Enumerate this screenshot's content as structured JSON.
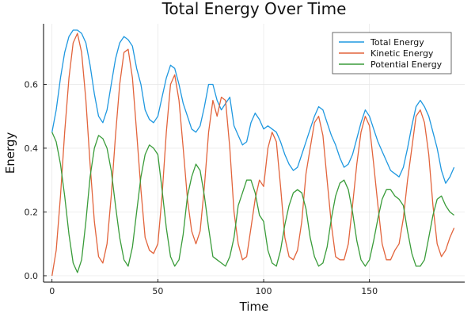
{
  "chart_data": {
    "type": "line",
    "title": "Total Energy Over Time",
    "xlabel": "Time",
    "ylabel": "Energy",
    "xlim": [
      -4,
      195
    ],
    "ylim": [
      -0.02,
      0.79
    ],
    "xticks": [
      0,
      50,
      100,
      150
    ],
    "yticks": [
      0.0,
      0.2,
      0.4,
      0.6
    ],
    "ytick_labels": [
      "0.0",
      "0.2",
      "0.4",
      "0.6"
    ],
    "grid": true,
    "legend_position": "top-right",
    "series": [
      {
        "name": "Total Energy",
        "color": "#1f98e0",
        "x": [
          0,
          2,
          4,
          6,
          8,
          10,
          12,
          14,
          16,
          18,
          20,
          22,
          24,
          26,
          28,
          30,
          32,
          34,
          36,
          38,
          40,
          42,
          44,
          46,
          48,
          50,
          52,
          54,
          56,
          58,
          60,
          62,
          64,
          66,
          68,
          70,
          72,
          74,
          76,
          78,
          80,
          82,
          84,
          86,
          88,
          90,
          92,
          94,
          96,
          98,
          100,
          102,
          104,
          106,
          108,
          110,
          112,
          114,
          116,
          118,
          120,
          122,
          124,
          126,
          128,
          130,
          132,
          134,
          136,
          138,
          140,
          142,
          144,
          146,
          148,
          150,
          152,
          154,
          156,
          158,
          160,
          162,
          164,
          166,
          168,
          170,
          172,
          174,
          176,
          178,
          180,
          182,
          184,
          186,
          188,
          190
        ],
        "values": [
          0.45,
          0.52,
          0.62,
          0.7,
          0.75,
          0.77,
          0.77,
          0.76,
          0.73,
          0.66,
          0.57,
          0.5,
          0.48,
          0.52,
          0.6,
          0.68,
          0.73,
          0.75,
          0.74,
          0.72,
          0.65,
          0.6,
          0.52,
          0.49,
          0.48,
          0.5,
          0.56,
          0.62,
          0.66,
          0.65,
          0.6,
          0.54,
          0.5,
          0.46,
          0.45,
          0.47,
          0.53,
          0.6,
          0.6,
          0.55,
          0.52,
          0.54,
          0.56,
          0.47,
          0.44,
          0.41,
          0.42,
          0.48,
          0.51,
          0.49,
          0.46,
          0.47,
          0.46,
          0.45,
          0.42,
          0.38,
          0.35,
          0.33,
          0.34,
          0.38,
          0.42,
          0.46,
          0.5,
          0.53,
          0.52,
          0.48,
          0.44,
          0.41,
          0.37,
          0.34,
          0.35,
          0.38,
          0.43,
          0.48,
          0.52,
          0.5,
          0.46,
          0.42,
          0.39,
          0.36,
          0.33,
          0.32,
          0.31,
          0.34,
          0.4,
          0.47,
          0.53,
          0.55,
          0.53,
          0.5,
          0.45,
          0.4,
          0.33,
          0.29,
          0.31,
          0.34
        ]
      },
      {
        "name": "Kinetic Energy",
        "color": "#e2643c",
        "x": [
          0,
          2,
          4,
          6,
          8,
          10,
          12,
          14,
          16,
          18,
          20,
          22,
          24,
          26,
          28,
          30,
          32,
          34,
          36,
          38,
          40,
          42,
          44,
          46,
          48,
          50,
          52,
          54,
          56,
          58,
          60,
          62,
          64,
          66,
          68,
          70,
          72,
          74,
          76,
          78,
          80,
          82,
          84,
          86,
          88,
          90,
          92,
          94,
          96,
          98,
          100,
          102,
          104,
          106,
          108,
          110,
          112,
          114,
          116,
          118,
          120,
          122,
          124,
          126,
          128,
          130,
          132,
          134,
          136,
          138,
          140,
          142,
          144,
          146,
          148,
          150,
          152,
          154,
          156,
          158,
          160,
          162,
          164,
          166,
          168,
          170,
          172,
          174,
          176,
          178,
          180,
          182,
          184,
          186,
          188,
          190
        ],
        "values": [
          0.0,
          0.08,
          0.25,
          0.45,
          0.62,
          0.73,
          0.76,
          0.7,
          0.55,
          0.35,
          0.17,
          0.06,
          0.04,
          0.1,
          0.25,
          0.44,
          0.6,
          0.7,
          0.71,
          0.62,
          0.45,
          0.27,
          0.12,
          0.08,
          0.07,
          0.1,
          0.25,
          0.45,
          0.6,
          0.63,
          0.55,
          0.4,
          0.24,
          0.14,
          0.1,
          0.14,
          0.28,
          0.45,
          0.55,
          0.5,
          0.56,
          0.55,
          0.4,
          0.2,
          0.1,
          0.05,
          0.06,
          0.15,
          0.24,
          0.3,
          0.28,
          0.4,
          0.45,
          0.42,
          0.28,
          0.12,
          0.06,
          0.05,
          0.08,
          0.17,
          0.32,
          0.4,
          0.48,
          0.5,
          0.44,
          0.3,
          0.16,
          0.06,
          0.05,
          0.05,
          0.1,
          0.22,
          0.35,
          0.45,
          0.5,
          0.47,
          0.35,
          0.22,
          0.1,
          0.05,
          0.05,
          0.08,
          0.1,
          0.18,
          0.3,
          0.4,
          0.5,
          0.52,
          0.48,
          0.38,
          0.22,
          0.1,
          0.06,
          0.08,
          0.12,
          0.15
        ]
      },
      {
        "name": "Potential Energy",
        "color": "#3a9c3a",
        "x": [
          0,
          2,
          4,
          6,
          8,
          10,
          12,
          14,
          16,
          18,
          20,
          22,
          24,
          26,
          28,
          30,
          32,
          34,
          36,
          38,
          40,
          42,
          44,
          46,
          48,
          50,
          52,
          54,
          56,
          58,
          60,
          62,
          64,
          66,
          68,
          70,
          72,
          74,
          76,
          78,
          80,
          82,
          84,
          86,
          88,
          90,
          92,
          94,
          96,
          98,
          100,
          102,
          104,
          106,
          108,
          110,
          112,
          114,
          116,
          118,
          120,
          122,
          124,
          126,
          128,
          130,
          132,
          134,
          136,
          138,
          140,
          142,
          144,
          146,
          148,
          150,
          152,
          154,
          156,
          158,
          160,
          162,
          164,
          166,
          168,
          170,
          172,
          174,
          176,
          178,
          180,
          182,
          184,
          186,
          188,
          190
        ],
        "values": [
          0.45,
          0.42,
          0.35,
          0.25,
          0.13,
          0.04,
          0.01,
          0.05,
          0.17,
          0.31,
          0.4,
          0.44,
          0.43,
          0.4,
          0.33,
          0.22,
          0.12,
          0.05,
          0.03,
          0.09,
          0.2,
          0.31,
          0.38,
          0.41,
          0.4,
          0.38,
          0.27,
          0.15,
          0.06,
          0.03,
          0.05,
          0.13,
          0.25,
          0.31,
          0.35,
          0.33,
          0.25,
          0.15,
          0.06,
          0.05,
          0.04,
          0.03,
          0.06,
          0.12,
          0.22,
          0.26,
          0.3,
          0.3,
          0.26,
          0.19,
          0.17,
          0.08,
          0.04,
          0.03,
          0.08,
          0.16,
          0.22,
          0.26,
          0.27,
          0.26,
          0.21,
          0.12,
          0.06,
          0.03,
          0.04,
          0.09,
          0.18,
          0.25,
          0.29,
          0.3,
          0.27,
          0.2,
          0.11,
          0.05,
          0.03,
          0.05,
          0.11,
          0.18,
          0.24,
          0.27,
          0.27,
          0.25,
          0.24,
          0.22,
          0.14,
          0.07,
          0.03,
          0.03,
          0.05,
          0.12,
          0.19,
          0.24,
          0.25,
          0.22,
          0.2,
          0.19
        ]
      }
    ]
  }
}
